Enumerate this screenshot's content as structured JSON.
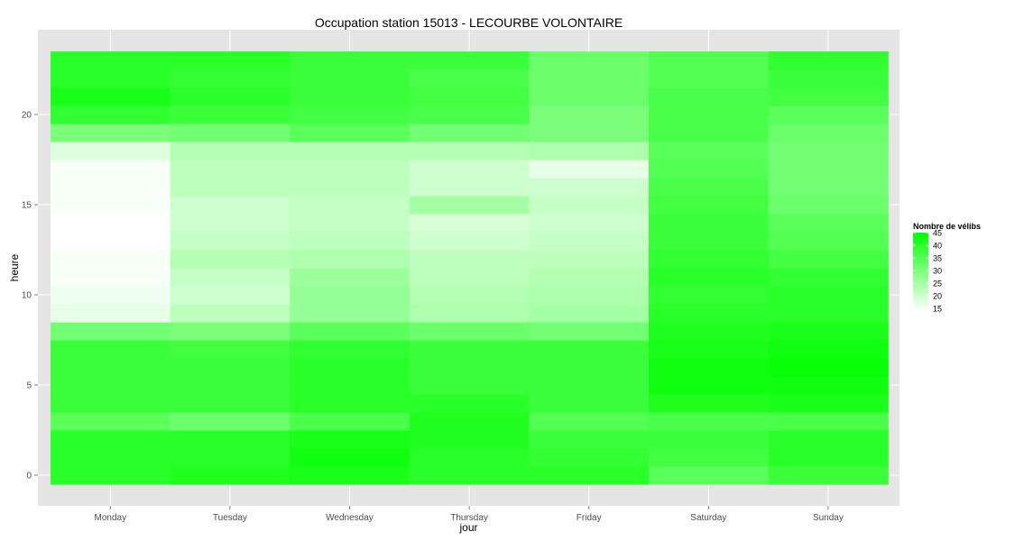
{
  "chart_data": {
    "type": "heatmap",
    "title": "Occupation station 15013 - LECOURBE VOLONTAIRE",
    "xlabel": "jour",
    "ylabel": "heure",
    "x": [
      "Monday",
      "Tuesday",
      "Wednesday",
      "Thursday",
      "Friday",
      "Saturday",
      "Sunday"
    ],
    "y": [
      0,
      1,
      2,
      3,
      4,
      5,
      6,
      7,
      8,
      9,
      10,
      11,
      12,
      13,
      14,
      15,
      16,
      17,
      18,
      19,
      20,
      21,
      22,
      23
    ],
    "y_ticks": [
      0,
      5,
      10,
      15,
      20
    ],
    "y_range": [
      -0.5,
      23.5
    ],
    "legend": {
      "title": "Nombre de vélibs",
      "ticks": [
        15,
        20,
        25,
        30,
        35,
        40,
        45
      ],
      "min": 14,
      "max": 45,
      "low_color": "#ffffff",
      "high_color": "#00ff00",
      "placement": "right"
    },
    "values": [
      [
        40,
        41,
        42,
        40,
        40,
        34,
        38
      ],
      [
        40,
        40,
        43,
        40,
        39,
        37,
        40
      ],
      [
        40,
        40,
        42,
        41,
        38,
        38,
        40
      ],
      [
        34,
        32,
        36,
        41,
        35,
        36,
        36
      ],
      [
        38,
        38,
        40,
        40,
        38,
        41,
        42
      ],
      [
        38,
        38,
        40,
        38,
        38,
        43,
        43
      ],
      [
        38,
        38,
        40,
        38,
        38,
        43,
        44
      ],
      [
        38,
        37,
        39,
        38,
        38,
        42,
        43
      ],
      [
        31,
        30,
        34,
        32,
        31,
        41,
        42
      ],
      [
        17,
        22,
        27,
        24,
        25,
        40,
        40
      ],
      [
        16,
        20,
        27,
        23,
        24,
        39,
        40
      ],
      [
        15,
        21,
        26,
        22,
        23,
        40,
        39
      ],
      [
        15,
        23,
        24,
        22,
        22,
        39,
        37
      ],
      [
        14,
        21,
        22,
        20,
        21,
        38,
        35
      ],
      [
        14,
        20,
        21,
        19,
        20,
        38,
        34
      ],
      [
        15,
        20,
        21,
        25,
        21,
        37,
        32
      ],
      [
        15,
        22,
        22,
        20,
        20,
        36,
        31
      ],
      [
        15,
        22,
        22,
        20,
        17,
        35,
        31
      ],
      [
        18,
        23,
        23,
        23,
        24,
        34,
        31
      ],
      [
        30,
        31,
        34,
        31,
        30,
        36,
        32
      ],
      [
        39,
        38,
        37,
        36,
        30,
        36,
        34
      ],
      [
        42,
        40,
        38,
        37,
        32,
        36,
        37
      ],
      [
        40,
        39,
        38,
        36,
        32,
        35,
        38
      ],
      [
        40,
        40,
        38,
        38,
        32,
        35,
        39
      ]
    ]
  }
}
